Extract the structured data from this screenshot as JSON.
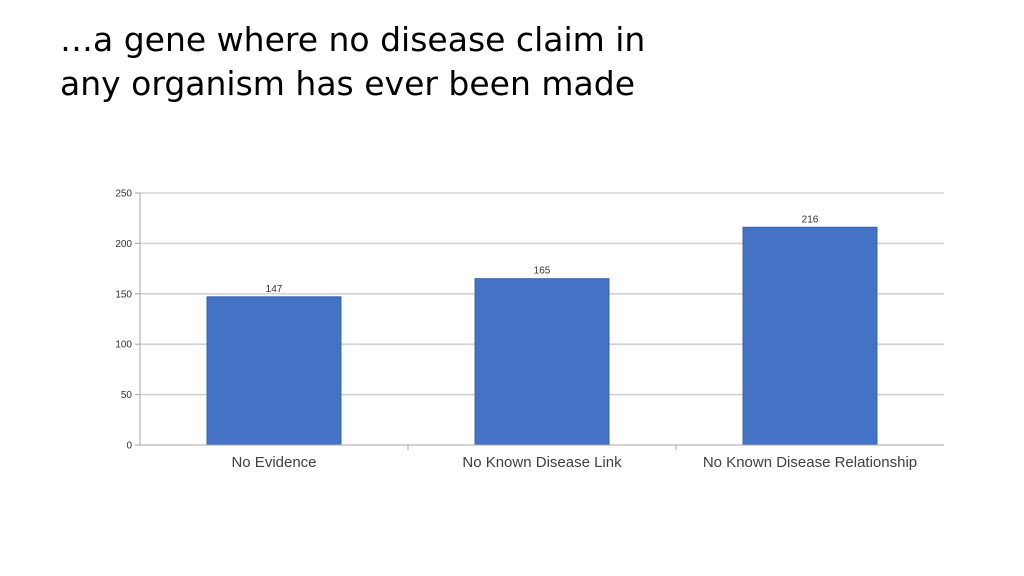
{
  "slide": {
    "title_line1": "…a gene where no disease claim in",
    "title_line2": "any organism has ever been made"
  },
  "chart_data": {
    "type": "bar",
    "title": "",
    "xlabel": "",
    "ylabel": "",
    "categories": [
      "No Evidence",
      "No Known Disease Link",
      "No Known Disease Relationship"
    ],
    "values": [
      147,
      165,
      216
    ],
    "ylim": [
      0,
      250
    ],
    "yticks": [
      0,
      50,
      100,
      150,
      200,
      250
    ],
    "grid": true,
    "legend": "none",
    "data_labels": true,
    "bar_color": "#4472C4",
    "bar_border_color": "#3A63AD",
    "grid_color": "#D3D3D3",
    "axis_color": "#A6A6A6"
  }
}
